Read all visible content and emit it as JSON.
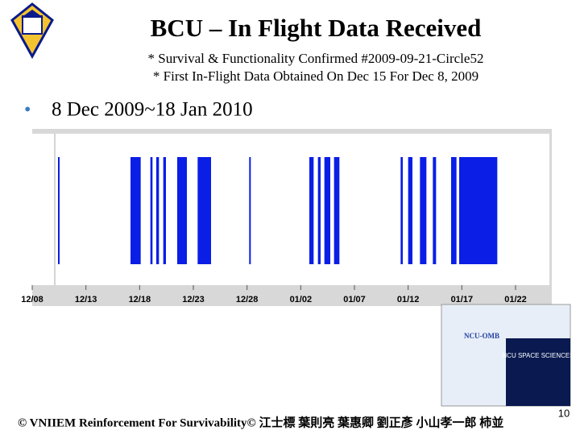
{
  "header": {
    "title": "BCU – In Flight Data Received",
    "subtitles": [
      "* Survival & Functionality Confirmed #2009-09-21-Circle52",
      "* First In-Flight Data Obtained On Dec 15 For Dec 8, 2009"
    ]
  },
  "bullet": "8 Dec 2009~18 Jan 2010",
  "chart_data": {
    "type": "timeline",
    "color": "#0a1ee6",
    "xlim": [
      0,
      48
    ],
    "xticks": [
      {
        "value": 0,
        "label": "12/08"
      },
      {
        "value": 5,
        "label": "12/13"
      },
      {
        "value": 10,
        "label": "12/18"
      },
      {
        "value": 15,
        "label": "12/23"
      },
      {
        "value": 20,
        "label": "12/28"
      },
      {
        "value": 25,
        "label": "01/02"
      },
      {
        "value": 30,
        "label": "01/07"
      },
      {
        "value": 35,
        "label": "01/12"
      },
      {
        "value": 40,
        "label": "01/17"
      },
      {
        "value": 45,
        "label": "01/22"
      }
    ],
    "spans": [
      [
        2.4,
        2.55
      ],
      [
        9.15,
        10.1
      ],
      [
        11.0,
        11.2
      ],
      [
        11.55,
        11.8
      ],
      [
        12.2,
        12.45
      ],
      [
        13.5,
        14.4
      ],
      [
        15.4,
        16.65
      ],
      [
        20.2,
        20.35
      ],
      [
        25.8,
        26.2
      ],
      [
        26.6,
        26.85
      ],
      [
        27.2,
        27.75
      ],
      [
        28.1,
        28.6
      ],
      [
        34.3,
        34.5
      ],
      [
        35.0,
        35.4
      ],
      [
        36.1,
        36.7
      ],
      [
        37.3,
        37.6
      ],
      [
        39.0,
        39.5
      ],
      [
        39.75,
        43.3
      ]
    ]
  },
  "logos": {
    "ncu_omb": "NCU-OMB",
    "space_sciences": "NCU SPACE SCIENCES"
  },
  "footer": "© VNIIEM Reinforcement For Survivability© 江士標 葉則亮 葉惠卿 劉正彥 小山孝一郎 柿並",
  "page_number": "10"
}
